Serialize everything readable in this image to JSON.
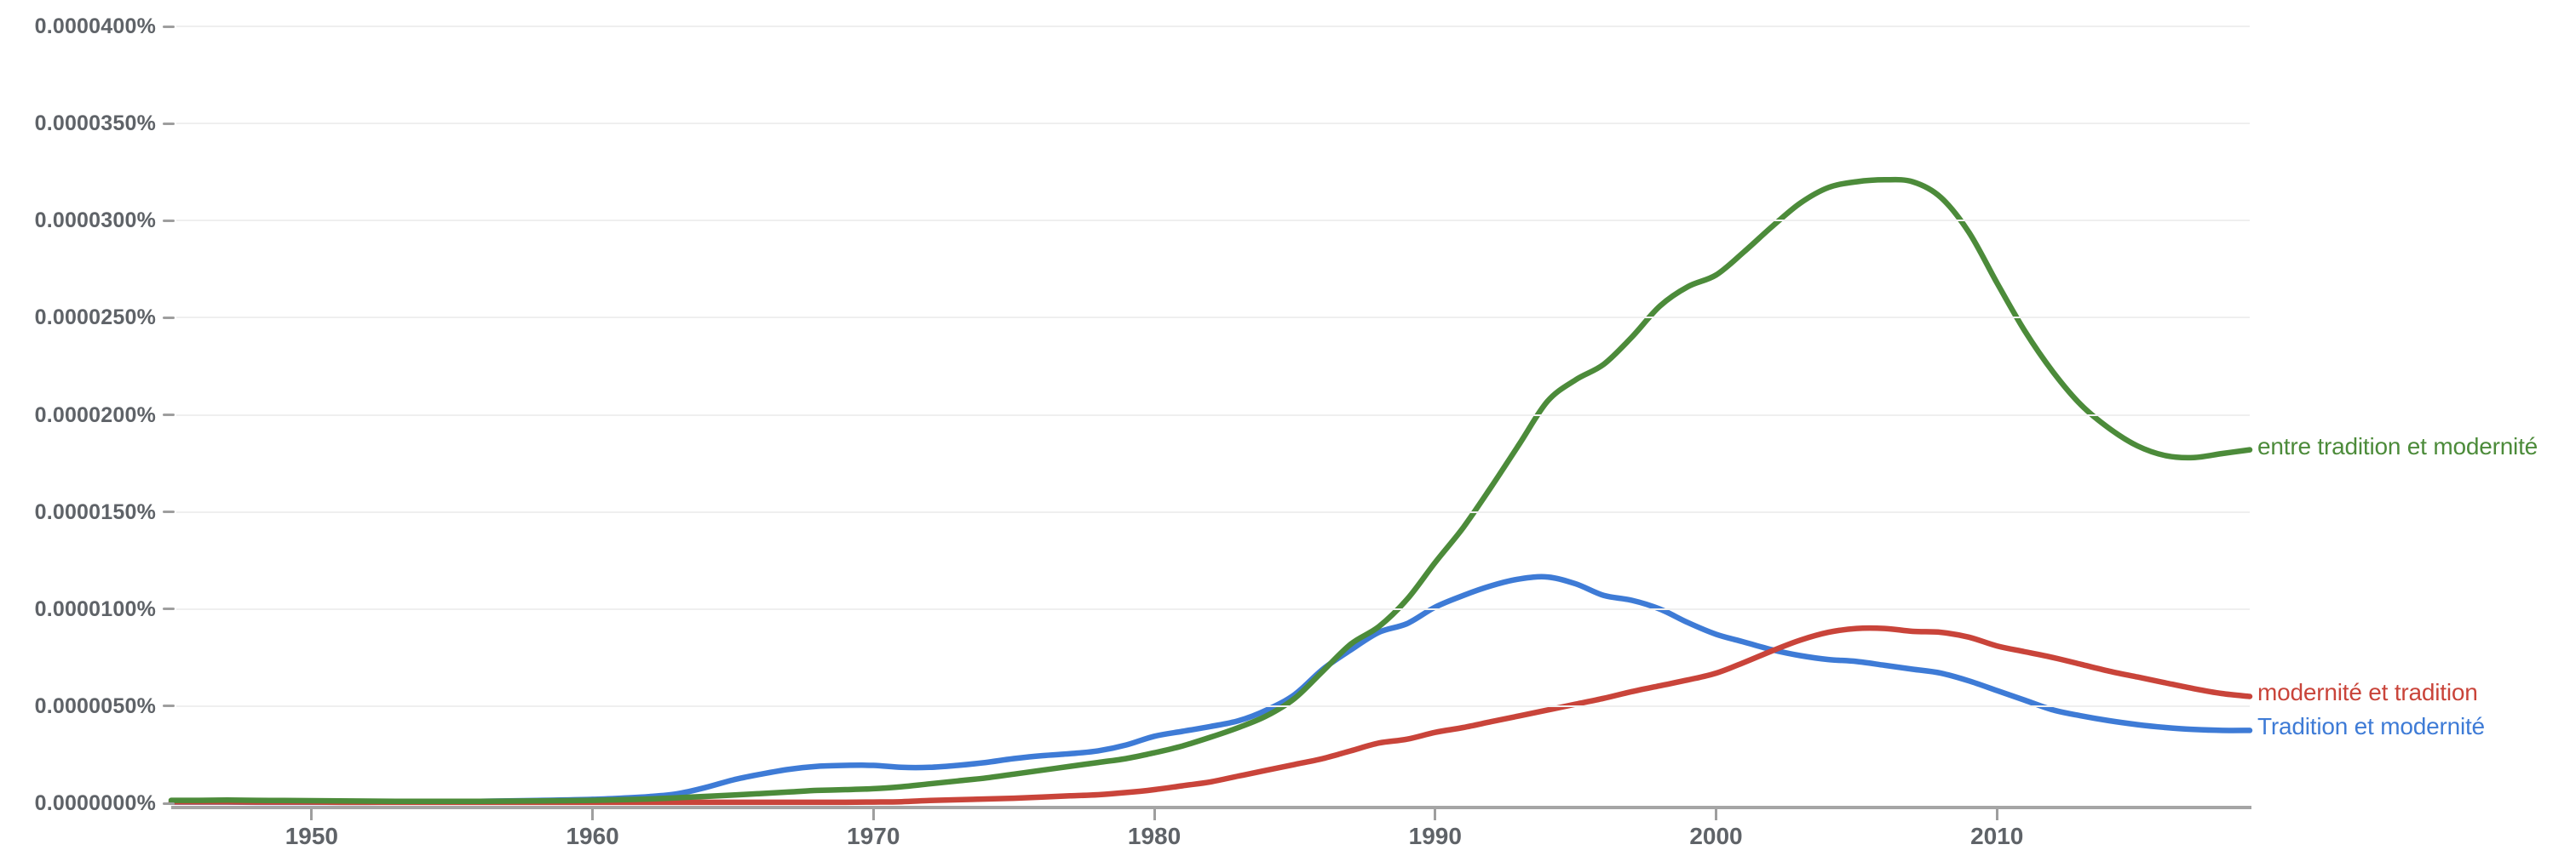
{
  "chart_data": {
    "type": "line",
    "title": "",
    "xlabel": "",
    "ylabel": "",
    "grid": true,
    "legend_position": "labels-at-line-end-right",
    "value_unit": "1e-7 percent (e.g. 321 = 0.0000321%)",
    "start_year": 1945,
    "end_year": 2019,
    "ylim": [
      0,
      400
    ],
    "x_tick_years": [
      1950,
      1960,
      1970,
      1980,
      1990,
      2000,
      2010
    ],
    "y_tick_values": [
      0,
      50,
      100,
      150,
      200,
      250,
      300,
      350,
      400
    ],
    "y_tick_labels": [
      "0.0000000%",
      "0.0000050%",
      "0.0000100%",
      "0.0000150%",
      "0.0000200%",
      "0.0000250%",
      "0.0000300%",
      "0.0000350%",
      "0.0000400%"
    ],
    "series": [
      {
        "name": "entre tradition et modernité",
        "color": "#4c8b3a",
        "peak": {
          "year": 2006,
          "value": 321
        },
        "values": [
          1.5,
          1.5,
          1.6,
          1.5,
          1.4,
          1.3,
          1.2,
          1.1,
          1.0,
          1.0,
          1.0,
          1.0,
          1.1,
          1.2,
          1.3,
          1.5,
          1.8,
          2.2,
          2.8,
          3.5,
          4.2,
          5.0,
          5.8,
          6.6,
          7.0,
          7.5,
          8.5,
          10,
          11.5,
          13,
          15,
          17,
          19,
          21,
          23,
          26,
          29.5,
          34,
          39,
          45,
          54,
          68,
          82,
          91,
          105,
          124,
          142,
          163,
          185,
          207,
          218,
          226,
          240,
          256,
          266,
          272,
          284,
          297,
          309,
          317,
          320,
          321,
          320,
          312,
          294,
          268,
          243,
          222,
          205,
          193,
          184,
          179,
          178,
          180,
          182
        ]
      },
      {
        "name": "modernité et tradition",
        "color": "#c9443a",
        "peak": {
          "year": 2005,
          "value": 90
        },
        "values": [
          0.7,
          0.7,
          0.7,
          0.6,
          0.6,
          0.6,
          0.5,
          0.5,
          0.5,
          0.5,
          0.5,
          0.5,
          0.5,
          0.5,
          0.5,
          0.5,
          0.5,
          0.5,
          0.5,
          0.5,
          0.5,
          0.5,
          0.5,
          0.5,
          0.5,
          0.6,
          0.8,
          1.4,
          1.8,
          2.2,
          2.6,
          3.2,
          3.8,
          4.4,
          5.5,
          7,
          9,
          11,
          14,
          17,
          20,
          23,
          27,
          31,
          33,
          36.5,
          39,
          42,
          45,
          48,
          51,
          54,
          57.5,
          60.5,
          63.5,
          67,
          72.5,
          78.5,
          84,
          88,
          90,
          90,
          88.5,
          88,
          85.5,
          81,
          78,
          75,
          71.5,
          68,
          65,
          62,
          59,
          56.5,
          55
        ]
      },
      {
        "name": "Tradition et modernité",
        "color": "#3e7bd6",
        "peak": {
          "year": 1994,
          "value": 116.5
        },
        "values": [
          0.6,
          0.6,
          0.6,
          0.5,
          0.5,
          0.5,
          0.5,
          0.5,
          0.6,
          0.7,
          0.8,
          1.0,
          1.2,
          1.4,
          1.7,
          2.0,
          2.6,
          3.4,
          4.8,
          8,
          12,
          15,
          17.5,
          19,
          19.5,
          19.5,
          18.5,
          18.5,
          19.5,
          21,
          23,
          24.5,
          25.5,
          27,
          30,
          34.5,
          37,
          39.5,
          42.5,
          48,
          56,
          69,
          79,
          88,
          92.5,
          101,
          107,
          112,
          115.5,
          116.5,
          113,
          107,
          104.5,
          100,
          93,
          87,
          83,
          79,
          76,
          74,
          73,
          71,
          69,
          67,
          63,
          58,
          53,
          48,
          45,
          42.5,
          40.5,
          39,
          38,
          37.5,
          37.5
        ]
      }
    ]
  },
  "colors": {
    "grid": "#efefef",
    "axis_line": "#a5a5a5",
    "tick_mark": "#9e9e9e",
    "tick_label": "#5f6368",
    "background": "#ffffff"
  }
}
